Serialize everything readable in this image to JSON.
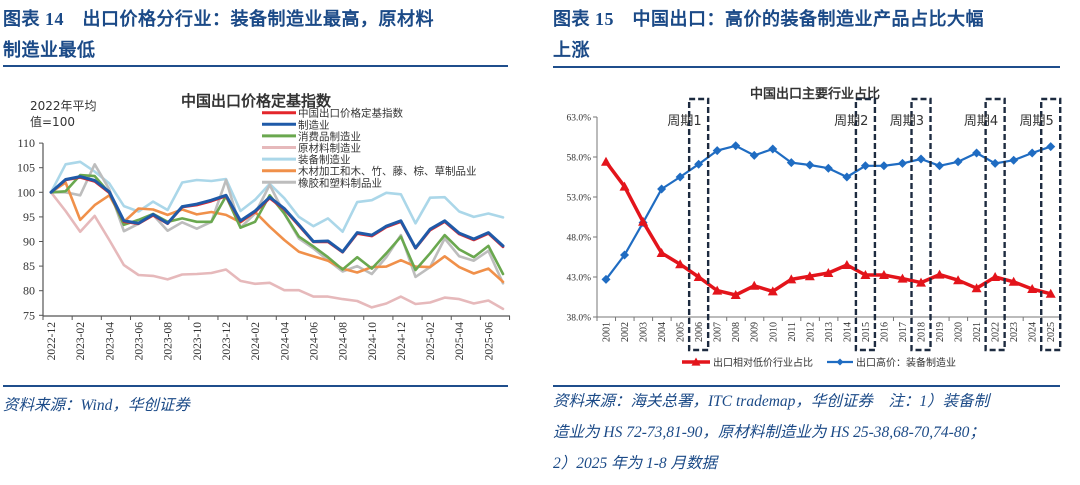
{
  "panels": [
    {
      "title_lines": [
        "图表 14　出口价格分行业：装备制造业最高，原材料",
        "制造业最低"
      ],
      "source": "资料来源：Wind，华创证券"
    },
    {
      "title_lines": [
        "图表 15　中国出口：高价的装备制造业产品占比大幅",
        "上涨"
      ],
      "source_lines": [
        "资料来源：海关总署，ITC trademap，华创证券　注：1）装备制",
        "造业为 HS 72-73,81-90，原材料制造业为 HS 25-38,68-70,74-80；",
        "2）2025 年为 1-8 月数据"
      ]
    }
  ],
  "chart_data": [
    {
      "type": "line",
      "title": "中国出口价格定基指数",
      "annotation_lines": [
        "2022年平均",
        "值=100"
      ],
      "xlabel": "",
      "ylabel": "",
      "ylim": [
        75,
        110
      ],
      "yticks": [
        75,
        80,
        85,
        90,
        95,
        100,
        105,
        110
      ],
      "legend_position": "top-right",
      "x": [
        "2022-12",
        "2023-01",
        "2023-02",
        "2023-03",
        "2023-04",
        "2023-05",
        "2023-06",
        "2023-07",
        "2023-08",
        "2023-09",
        "2023-10",
        "2023-11",
        "2023-12",
        "2024-01",
        "2024-02",
        "2024-03",
        "2024-04",
        "2024-05",
        "2024-06",
        "2024-07",
        "2024-08",
        "2024-09",
        "2024-10",
        "2024-11",
        "2024-12",
        "2025-01",
        "2025-02",
        "2025-03",
        "2025-04",
        "2025-05",
        "2025-06",
        "2025-07"
      ],
      "x_tick_labels": [
        "2022-12",
        "2023-02",
        "2023-04",
        "2023-06",
        "2023-08",
        "2023-10",
        "2023-12",
        "2024-02",
        "2024-04",
        "2024-06",
        "2024-08",
        "2024-10",
        "2024-12",
        "2025-02",
        "2025-04",
        "2025-06"
      ],
      "series": [
        {
          "name": "中国出口价格定基指数",
          "color": "#e3262b",
          "values": [
            100,
            102.5,
            103.0,
            102.2,
            99.9,
            94.0,
            93.6,
            95.3,
            93.6,
            97.0,
            97.4,
            98.2,
            99.2,
            94.0,
            96.0,
            98.8,
            96.5,
            93.2,
            89.9,
            89.9,
            87.8,
            91.6,
            91.1,
            92.9,
            94.0,
            88.6,
            92.3,
            94.0,
            91.5,
            90.3,
            91.6,
            88.9
          ]
        },
        {
          "name": "制造业",
          "color": "#1f5aa8",
          "values": [
            100,
            102.6,
            103.2,
            102.4,
            100.1,
            94.2,
            93.7,
            95.5,
            93.7,
            97.1,
            97.6,
            98.4,
            99.4,
            94.2,
            96.2,
            99.0,
            96.7,
            93.4,
            90.0,
            90.1,
            87.9,
            91.8,
            91.3,
            93.1,
            94.2,
            88.7,
            92.5,
            94.2,
            91.7,
            90.5,
            91.8,
            89.1
          ]
        },
        {
          "name": "消费品制造业",
          "color": "#6aa84f",
          "values": [
            100,
            100.2,
            103.5,
            103.3,
            99.9,
            93.4,
            94.4,
            95.6,
            94.0,
            94.7,
            94.0,
            94.0,
            99.2,
            92.8,
            94.0,
            99.4,
            95.7,
            91.0,
            89.0,
            86.8,
            84.3,
            86.8,
            84.5,
            87.6,
            91.0,
            84.2,
            87.6,
            91.3,
            88.4,
            86.8,
            89.1,
            83.4
          ]
        },
        {
          "name": "原材料制造业",
          "color": "#e6b9bb",
          "values": [
            100,
            96.2,
            92.0,
            95.2,
            90.3,
            85.2,
            83.2,
            83.0,
            82.3,
            83.3,
            83.4,
            83.6,
            84.3,
            82.0,
            81.4,
            81.6,
            80.1,
            80.1,
            78.8,
            78.8,
            78.3,
            77.9,
            76.6,
            77.4,
            78.8,
            77.3,
            77.6,
            78.6,
            78.3,
            77.4,
            78.0,
            76.3
          ]
        },
        {
          "name": "装备制造业",
          "color": "#abd7e9",
          "values": [
            100,
            105.7,
            106.2,
            104.2,
            101.8,
            97.2,
            96.1,
            98.1,
            96.4,
            102.0,
            102.5,
            102.3,
            102.7,
            96.2,
            98.5,
            101.7,
            98.8,
            95.0,
            93.1,
            94.7,
            92.0,
            98.0,
            98.4,
            99.9,
            99.6,
            93.7,
            98.9,
            99.0,
            96.1,
            95.0,
            95.7,
            94.9
          ]
        },
        {
          "name": "木材加工和木、竹、藤、棕、草制品业",
          "color": "#f0904a",
          "values": [
            100,
            102.0,
            94.4,
            97.4,
            99.4,
            94.0,
            96.7,
            96.5,
            95.4,
            96.5,
            95.5,
            96.0,
            95.4,
            93.9,
            96.0,
            93.0,
            90.3,
            87.9,
            87.0,
            86.1,
            84.5,
            83.7,
            84.8,
            84.9,
            86.2,
            84.9,
            84.8,
            87.0,
            84.8,
            83.5,
            84.5,
            81.8
          ]
        },
        {
          "name": "橡胶和塑料制品业",
          "color": "#bdbdbd",
          "values": [
            100,
            100.0,
            99.4,
            105.7,
            100.6,
            92.1,
            93.6,
            95.4,
            92.2,
            93.9,
            92.6,
            94.0,
            102.5,
            92.8,
            95.7,
            101.5,
            95.7,
            90.6,
            88.6,
            86.2,
            83.9,
            85.0,
            83.4,
            86.8,
            91.3,
            82.8,
            84.8,
            90.6,
            87.0,
            86.1,
            88.1,
            81.5
          ]
        }
      ]
    },
    {
      "type": "line",
      "title": "中国出口主要行业占比",
      "xlabel": "",
      "ylabel": "",
      "ylim": [
        38,
        63
      ],
      "yticks": [
        38,
        43,
        48,
        53,
        58,
        63
      ],
      "ytick_format": "percent_1dp",
      "legend_position": "bottom",
      "x": [
        "2001",
        "2002",
        "2003",
        "2004",
        "2005",
        "2006",
        "2007",
        "2008",
        "2009",
        "2010",
        "2011",
        "2012",
        "2013",
        "2014",
        "2015",
        "2016",
        "2017",
        "2018",
        "2019",
        "2020",
        "2021",
        "2022",
        "2023",
        "2024",
        "2025"
      ],
      "series": [
        {
          "name": "出口相对低价行业占比",
          "color": "#e3141b",
          "marker": "triangle",
          "values": [
            57.4,
            54.3,
            49.9,
            46.0,
            44.6,
            43.0,
            41.3,
            40.75,
            41.9,
            41.2,
            42.7,
            43.1,
            43.5,
            44.5,
            43.25,
            43.25,
            42.8,
            42.3,
            43.3,
            42.6,
            41.6,
            43.0,
            42.4,
            41.5,
            40.9
          ]
        },
        {
          "name": "出口高价：装备制造业",
          "color": "#1f6cc2",
          "marker": "diamond",
          "values": [
            42.7,
            45.75,
            49.8,
            54.0,
            55.5,
            57.1,
            58.8,
            59.4,
            58.2,
            59.0,
            57.3,
            57.0,
            56.6,
            55.5,
            56.9,
            56.9,
            57.2,
            57.75,
            56.9,
            57.4,
            58.5,
            57.2,
            57.6,
            58.5,
            59.3
          ]
        }
      ],
      "annotations": [
        {
          "label": "周期1",
          "year": "2006"
        },
        {
          "label": "周期2",
          "year": "2015"
        },
        {
          "label": "周期3",
          "year": "2018"
        },
        {
          "label": "周期4",
          "year": "2022"
        },
        {
          "label": "周期5",
          "year": "2025"
        }
      ]
    }
  ]
}
